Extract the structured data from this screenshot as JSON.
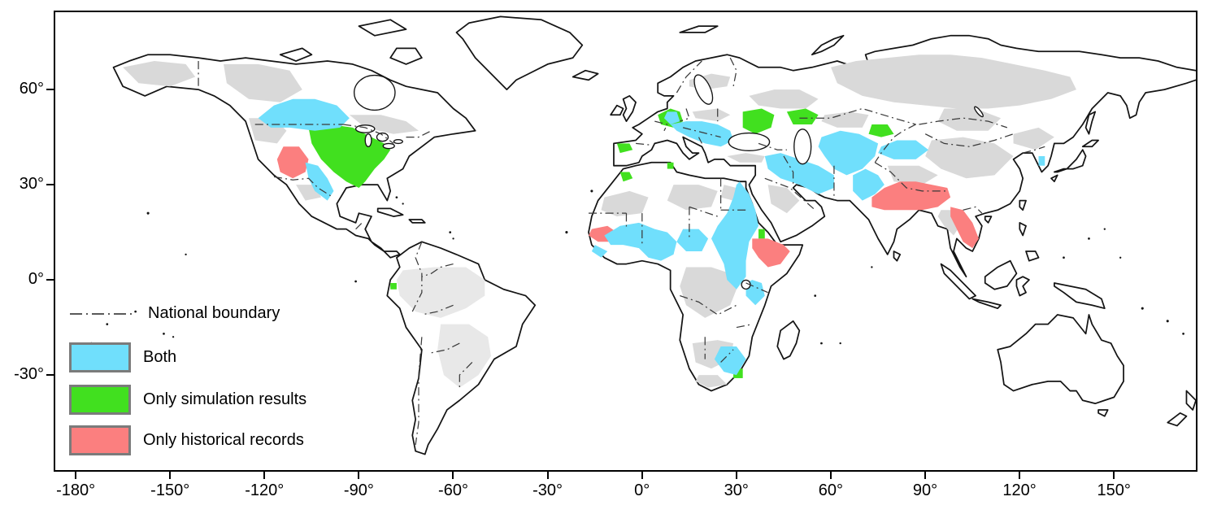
{
  "palette": {
    "sea": "#ffffff",
    "land": "#ffffff",
    "coast": "#141414",
    "boundary": "#3a3a3a",
    "legend_line": "#222222",
    "nodata": "#d9d9d9",
    "nodata_light": "#e8e8e8",
    "both": "#70dffc",
    "simulation": "#41e01f",
    "historical": "#fb7f7f",
    "frame": "#000000"
  },
  "legend": {
    "boundary_label": "National boundary",
    "swatch_border": "#7b7b7b",
    "items": [
      {
        "key": "both",
        "label": "Both"
      },
      {
        "key": "simulation",
        "label": "Only simulation results"
      },
      {
        "key": "historical",
        "label": "Only historical records"
      }
    ]
  },
  "axes": {
    "x_ticks": [
      {
        "lon": -180,
        "label": "-180°"
      },
      {
        "lon": -150,
        "label": "-150°"
      },
      {
        "lon": -120,
        "label": "-120°"
      },
      {
        "lon": -90,
        "label": "-90°"
      },
      {
        "lon": -60,
        "label": "-60°"
      },
      {
        "lon": -30,
        "label": "-30°"
      },
      {
        "lon": 0,
        "label": "0°"
      },
      {
        "lon": 30,
        "label": "30°"
      },
      {
        "lon": 60,
        "label": "60°"
      },
      {
        "lon": 90,
        "label": "90°"
      },
      {
        "lon": 120,
        "label": "120°"
      },
      {
        "lon": 150,
        "label": "150°"
      }
    ],
    "y_ticks": [
      {
        "lat": 60,
        "label": "60°"
      },
      {
        "lat": 30,
        "label": "30°"
      },
      {
        "lat": 0,
        "label": "0°"
      },
      {
        "lat": -30,
        "label": "-30°"
      }
    ]
  }
}
